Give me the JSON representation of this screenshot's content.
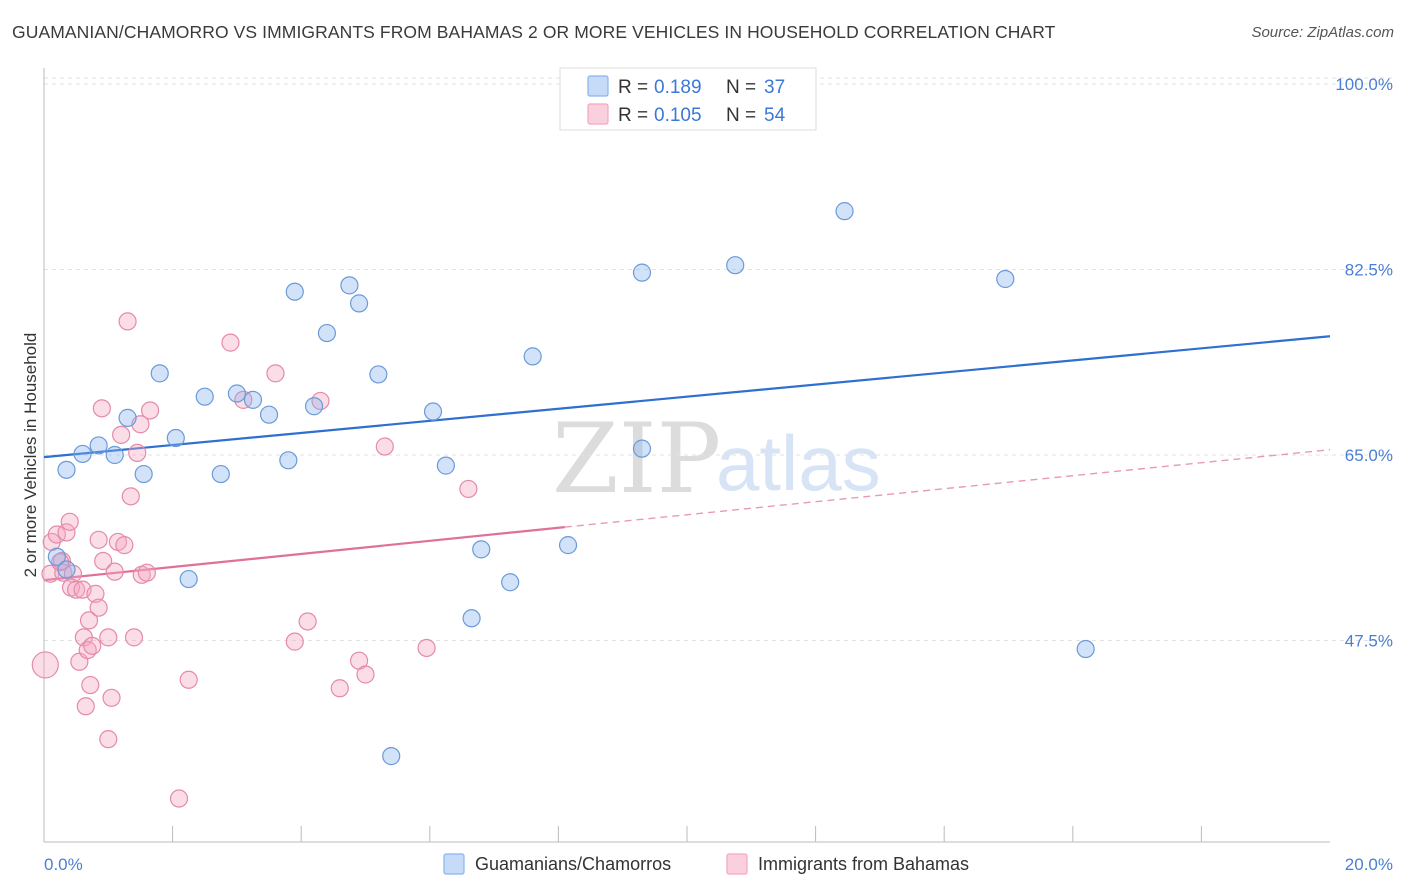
{
  "title": "GUAMANIAN/CHAMORRO VS IMMIGRANTS FROM BAHAMAS 2 OR MORE VEHICLES IN HOUSEHOLD CORRELATION CHART",
  "source": "Source: ZipAtlas.com",
  "watermark": {
    "zip": "ZIP",
    "atlas": "atlas"
  },
  "legend": {
    "r_label": "R =",
    "n_label": "N =",
    "rows": [
      {
        "r": "0.189",
        "n": "37",
        "color": "#8ab4f0"
      },
      {
        "r": "0.105",
        "n": "54",
        "color": "#f4a6c0"
      }
    ]
  },
  "bottom_legend": [
    "Guamanians/Chamorros",
    "Immigrants from Bahamas"
  ],
  "chart_data": {
    "type": "scatter",
    "title": "GUAMANIAN/CHAMORRO VS IMMIGRANTS FROM BAHAMAS 2 OR MORE VEHICLES IN HOUSEHOLD CORRELATION CHART",
    "xlabel": "",
    "ylabel": "2 or more Vehicles in Household",
    "xlim": [
      0,
      20
    ],
    "ylim": [
      28.5,
      101.5
    ],
    "x_tick_labels": [
      "0.0%",
      "20.0%"
    ],
    "y_ticks": [
      47.5,
      65.0,
      82.5,
      100.0
    ],
    "y_tick_labels": [
      "47.5%",
      "65.0%",
      "82.5%",
      "100.0%"
    ],
    "grid": true,
    "legend_position": "top-center",
    "series": [
      {
        "name": "Guamanians/Chamorros",
        "color": "#8ab4f0",
        "stroke": "#6a9bd8",
        "r": 0.189,
        "n": 37,
        "trend": {
          "x": [
            0,
            20
          ],
          "y": [
            64.8,
            76.2
          ],
          "style": "solid",
          "color": "#2e6fd0"
        },
        "points": [
          [
            0.2,
            55.4
          ],
          [
            0.35,
            54.2
          ],
          [
            0.35,
            63.6
          ],
          [
            0.6,
            65.1
          ],
          [
            0.85,
            65.9
          ],
          [
            1.1,
            65.0
          ],
          [
            1.3,
            68.5
          ],
          [
            1.55,
            63.2
          ],
          [
            1.8,
            72.7
          ],
          [
            2.05,
            66.6
          ],
          [
            2.25,
            53.3
          ],
          [
            2.5,
            70.5
          ],
          [
            2.75,
            63.2
          ],
          [
            3.0,
            70.8
          ],
          [
            3.25,
            70.2
          ],
          [
            3.5,
            68.8
          ],
          [
            3.8,
            64.5
          ],
          [
            3.9,
            80.4
          ],
          [
            4.2,
            69.6
          ],
          [
            4.4,
            76.5
          ],
          [
            4.75,
            81.0
          ],
          [
            4.9,
            79.3
          ],
          [
            5.2,
            72.6
          ],
          [
            5.4,
            36.6
          ],
          [
            6.05,
            69.1
          ],
          [
            6.25,
            64.0
          ],
          [
            6.65,
            49.6
          ],
          [
            6.8,
            56.1
          ],
          [
            7.25,
            53.0
          ],
          [
            7.6,
            74.3
          ],
          [
            8.15,
            56.5
          ],
          [
            9.3,
            65.6
          ],
          [
            9.3,
            82.2
          ],
          [
            10.75,
            82.9
          ],
          [
            12.45,
            88.0
          ],
          [
            14.95,
            81.6
          ],
          [
            16.2,
            46.7
          ]
        ]
      },
      {
        "name": "Immigrants from Bahamas",
        "color": "#f4a6c0",
        "stroke": "#e58aa8",
        "r": 0.105,
        "n": 54,
        "trend_solid": {
          "x": [
            0,
            8.1
          ],
          "y": [
            53.2,
            58.2
          ],
          "style": "solid",
          "color": "#e0709a"
        },
        "trend_dashed": {
          "x": [
            8.1,
            20
          ],
          "y": [
            58.2,
            65.5
          ],
          "style": "dashed",
          "color": "#e89ab4"
        },
        "points": [
          [
            0.02,
            45.2
          ],
          [
            0.1,
            53.8
          ],
          [
            0.12,
            56.8
          ],
          [
            0.2,
            57.5
          ],
          [
            0.28,
            55.0
          ],
          [
            0.3,
            53.9
          ],
          [
            0.35,
            57.7
          ],
          [
            0.4,
            58.7
          ],
          [
            0.45,
            53.8
          ],
          [
            0.42,
            52.5
          ],
          [
            0.5,
            52.3
          ],
          [
            0.55,
            45.5
          ],
          [
            0.6,
            52.3
          ],
          [
            0.62,
            47.8
          ],
          [
            0.65,
            41.3
          ],
          [
            0.68,
            46.6
          ],
          [
            0.7,
            49.4
          ],
          [
            0.75,
            47.0
          ],
          [
            0.72,
            43.3
          ],
          [
            0.8,
            51.9
          ],
          [
            0.85,
            50.6
          ],
          [
            0.85,
            57.0
          ],
          [
            0.9,
            69.4
          ],
          [
            0.92,
            55.0
          ],
          [
            1.0,
            47.8
          ],
          [
            1.0,
            38.2
          ],
          [
            1.05,
            42.1
          ],
          [
            1.1,
            54.0
          ],
          [
            1.15,
            56.8
          ],
          [
            1.2,
            66.9
          ],
          [
            1.25,
            56.5
          ],
          [
            1.3,
            77.6
          ],
          [
            1.35,
            61.1
          ],
          [
            1.4,
            47.8
          ],
          [
            1.45,
            65.2
          ],
          [
            1.5,
            67.9
          ],
          [
            1.52,
            53.7
          ],
          [
            1.6,
            53.9
          ],
          [
            1.65,
            69.2
          ],
          [
            2.1,
            32.6
          ],
          [
            2.25,
            43.8
          ],
          [
            2.9,
            75.6
          ],
          [
            3.1,
            70.2
          ],
          [
            3.6,
            72.7
          ],
          [
            3.9,
            47.4
          ],
          [
            4.1,
            49.3
          ],
          [
            4.3,
            70.1
          ],
          [
            4.6,
            43.0
          ],
          [
            4.9,
            45.6
          ],
          [
            5.0,
            44.3
          ],
          [
            5.3,
            65.8
          ],
          [
            5.95,
            46.8
          ],
          [
            6.6,
            61.8
          ],
          [
            0.25,
            54.9
          ]
        ]
      }
    ]
  }
}
